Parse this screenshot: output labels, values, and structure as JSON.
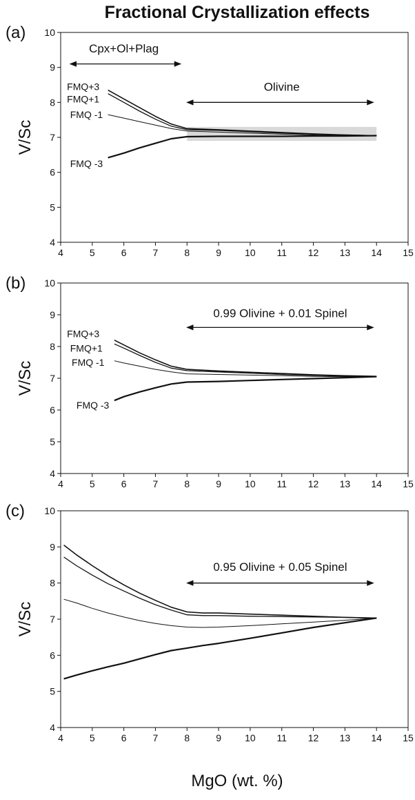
{
  "figure": {
    "title": "Fractional Crystallization effects",
    "xlabel": "MgO (wt. %)"
  },
  "chart_data": [
    {
      "type": "line",
      "panel_label": "(a)",
      "ylabel": "V/Sc",
      "xlim": [
        4,
        15
      ],
      "ylim": [
        4,
        10
      ],
      "xticks": [
        "4",
        "5",
        "6",
        "7",
        "8",
        "9",
        "10",
        "11",
        "12",
        "13",
        "14",
        "15"
      ],
      "yticks": [
        "4",
        "5",
        "6",
        "7",
        "8",
        "9",
        "10"
      ],
      "grid": false,
      "shaded_band": {
        "x": [
          8,
          14
        ],
        "y": [
          6.9,
          7.3
        ],
        "color": "#d9d9d9"
      },
      "annotations": [
        {
          "text": "Cpx+Ol+Plag",
          "arrow_x": [
            4.3,
            7.8
          ],
          "arrow_y": 9.1,
          "text_x": 6.0,
          "text_y": 9.55
        },
        {
          "text": "Olivine",
          "arrow_x": [
            8.0,
            13.9
          ],
          "arrow_y": 8.0,
          "text_x": 11.0,
          "text_y": 8.45
        }
      ],
      "series": [
        {
          "name": "FMQ+3",
          "label_at": [
            4.2,
            8.45
          ],
          "x": [
            5.5,
            6,
            6.5,
            7,
            7.5,
            8,
            9,
            10,
            11,
            12,
            13,
            14
          ],
          "y": [
            8.35,
            8.1,
            7.85,
            7.6,
            7.38,
            7.25,
            7.22,
            7.18,
            7.14,
            7.1,
            7.07,
            7.05
          ]
        },
        {
          "name": "FMQ+1",
          "label_at": [
            4.2,
            8.1
          ],
          "x": [
            5.5,
            6,
            6.5,
            7,
            7.5,
            8,
            9,
            10,
            11,
            12,
            13,
            14
          ],
          "y": [
            8.25,
            8.0,
            7.75,
            7.52,
            7.32,
            7.22,
            7.2,
            7.16,
            7.12,
            7.09,
            7.07,
            7.05
          ]
        },
        {
          "name": "FMQ -1",
          "label_at": [
            4.3,
            7.65
          ],
          "x": [
            5.5,
            6,
            6.5,
            7,
            7.5,
            8,
            9,
            10,
            11,
            12,
            13,
            14
          ],
          "y": [
            7.65,
            7.55,
            7.45,
            7.35,
            7.25,
            7.18,
            7.15,
            7.12,
            7.09,
            7.07,
            7.05,
            7.04
          ]
        },
        {
          "name": "FMQ -3",
          "label_at": [
            4.3,
            6.25
          ],
          "x": [
            5.5,
            6,
            6.5,
            7,
            7.5,
            8,
            9,
            10,
            11,
            12,
            13,
            14
          ],
          "y": [
            6.42,
            6.55,
            6.7,
            6.83,
            6.96,
            7.02,
            7.03,
            7.03,
            7.03,
            7.04,
            7.04,
            7.05
          ]
        }
      ]
    },
    {
      "type": "line",
      "panel_label": "(b)",
      "ylabel": "V/Sc",
      "xlim": [
        4,
        15
      ],
      "ylim": [
        4,
        10
      ],
      "xticks": [
        "4",
        "5",
        "6",
        "7",
        "8",
        "9",
        "10",
        "11",
        "12",
        "13",
        "14",
        "15"
      ],
      "yticks": [
        "4",
        "5",
        "6",
        "7",
        "8",
        "9",
        "10"
      ],
      "grid": false,
      "annotations": [
        {
          "text": "0.99 Olivine + 0.01 Spinel",
          "arrow_x": [
            8.0,
            13.9
          ],
          "arrow_y": 8.6,
          "text_x": 10.95,
          "text_y": 9.05
        }
      ],
      "series": [
        {
          "name": "FMQ+3",
          "label_at": [
            4.2,
            8.4
          ],
          "x": [
            5.7,
            6,
            6.5,
            7,
            7.5,
            8,
            9,
            10,
            11,
            12,
            13,
            14
          ],
          "y": [
            8.2,
            8.05,
            7.8,
            7.58,
            7.38,
            7.28,
            7.23,
            7.19,
            7.15,
            7.11,
            7.08,
            7.06
          ]
        },
        {
          "name": "FMQ+1",
          "label_at": [
            4.3,
            7.95
          ],
          "x": [
            5.7,
            6,
            6.5,
            7,
            7.5,
            8,
            9,
            10,
            11,
            12,
            13,
            14
          ],
          "y": [
            8.08,
            7.95,
            7.72,
            7.5,
            7.32,
            7.24,
            7.2,
            7.16,
            7.12,
            7.09,
            7.07,
            7.05
          ]
        },
        {
          "name": "FMQ -1",
          "label_at": [
            4.35,
            7.5
          ],
          "x": [
            5.7,
            6,
            6.5,
            7,
            7.5,
            8,
            9,
            10,
            11,
            12,
            13,
            14
          ],
          "y": [
            7.55,
            7.48,
            7.38,
            7.28,
            7.2,
            7.14,
            7.12,
            7.1,
            7.08,
            7.06,
            7.05,
            7.05
          ]
        },
        {
          "name": "FMQ -3",
          "label_at": [
            4.5,
            6.15
          ],
          "x": [
            5.7,
            6,
            6.5,
            7,
            7.5,
            8,
            9,
            10,
            11,
            12,
            13,
            14
          ],
          "y": [
            6.3,
            6.42,
            6.57,
            6.7,
            6.82,
            6.88,
            6.9,
            6.93,
            6.96,
            6.99,
            7.02,
            7.05
          ]
        }
      ]
    },
    {
      "type": "line",
      "panel_label": "(c)",
      "ylabel": "V/Sc",
      "xlim": [
        4,
        15
      ],
      "ylim": [
        4,
        10
      ],
      "xticks": [
        "4",
        "5",
        "6",
        "7",
        "8",
        "9",
        "10",
        "11",
        "12",
        "13",
        "14",
        "15"
      ],
      "yticks": [
        "4",
        "5",
        "6",
        "7",
        "8",
        "9",
        "10"
      ],
      "grid": false,
      "annotations": [
        {
          "text": "0.95 Olivine + 0.05 Spinel",
          "arrow_x": [
            8.0,
            13.9
          ],
          "arrow_y": 8.0,
          "text_x": 10.95,
          "text_y": 8.45
        }
      ],
      "series": [
        {
          "x": [
            4.1,
            4.5,
            5,
            5.5,
            6,
            6.5,
            7,
            7.5,
            8,
            8.5,
            9,
            10,
            11,
            12,
            13,
            14
          ],
          "y": [
            9.05,
            8.78,
            8.48,
            8.2,
            7.95,
            7.72,
            7.52,
            7.33,
            7.2,
            7.17,
            7.17,
            7.14,
            7.11,
            7.08,
            7.05,
            7.03
          ]
        },
        {
          "x": [
            4.1,
            4.5,
            5,
            5.5,
            6,
            6.5,
            7,
            7.5,
            8,
            8.5,
            9,
            10,
            11,
            12,
            13,
            14
          ],
          "y": [
            8.72,
            8.48,
            8.22,
            7.98,
            7.78,
            7.58,
            7.4,
            7.25,
            7.12,
            7.1,
            7.1,
            7.08,
            7.07,
            7.06,
            7.05,
            7.03
          ]
        },
        {
          "x": [
            4.1,
            4.5,
            5,
            5.5,
            6,
            6.5,
            7,
            7.5,
            8,
            8.5,
            9,
            10,
            11,
            12,
            13,
            14
          ],
          "y": [
            7.55,
            7.45,
            7.3,
            7.17,
            7.06,
            6.96,
            6.88,
            6.82,
            6.78,
            6.77,
            6.78,
            6.82,
            6.87,
            6.92,
            6.97,
            7.03
          ]
        },
        {
          "x": [
            4.1,
            4.5,
            5,
            5.5,
            6,
            6.5,
            7,
            7.5,
            8,
            8.5,
            9,
            10,
            11,
            12,
            13,
            14
          ],
          "y": [
            5.35,
            5.45,
            5.57,
            5.68,
            5.78,
            5.9,
            6.02,
            6.13,
            6.2,
            6.27,
            6.33,
            6.47,
            6.62,
            6.77,
            6.9,
            7.03
          ]
        }
      ]
    }
  ]
}
